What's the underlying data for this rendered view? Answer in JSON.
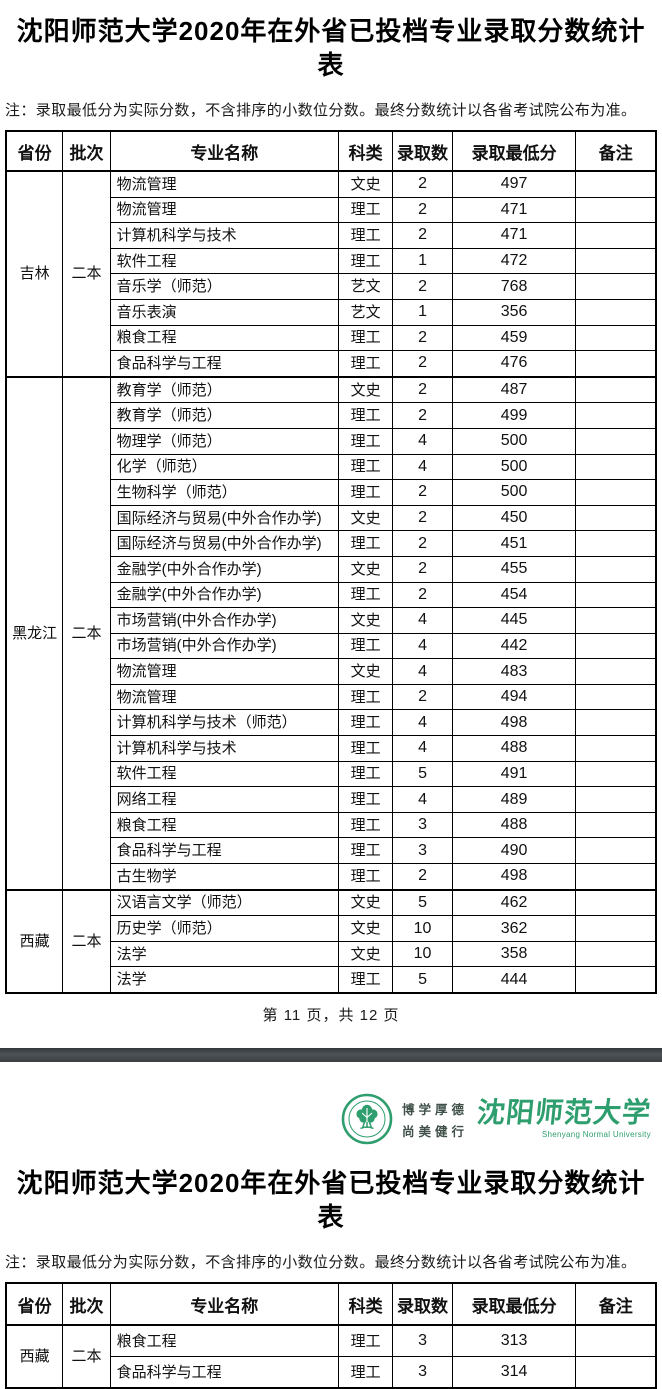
{
  "page1": {
    "title": "沈阳师范大学2020年在外省已投档专业录取分数统计表",
    "note": "注：录取最低分为实际分数，不含排序的小数位分数。最终分数统计以各省考试院公布为准。",
    "footer": "第 11 页，共 12 页",
    "table": {
      "headers": [
        "省份",
        "批次",
        "专业名称",
        "科类",
        "录取数",
        "录取最低分",
        "备注"
      ],
      "groups": [
        {
          "province": "吉林",
          "batch": "二本",
          "rows": [
            [
              "物流管理",
              "文史",
              "2",
              "497",
              ""
            ],
            [
              "物流管理",
              "理工",
              "2",
              "471",
              ""
            ],
            [
              "计算机科学与技术",
              "理工",
              "2",
              "471",
              ""
            ],
            [
              "软件工程",
              "理工",
              "1",
              "472",
              ""
            ],
            [
              "音乐学（师范）",
              "艺文",
              "2",
              "768",
              ""
            ],
            [
              "音乐表演",
              "艺文",
              "1",
              "356",
              ""
            ],
            [
              "粮食工程",
              "理工",
              "2",
              "459",
              ""
            ],
            [
              "食品科学与工程",
              "理工",
              "2",
              "476",
              ""
            ]
          ]
        },
        {
          "province": "黑龙江",
          "batch": "二本",
          "rows": [
            [
              "教育学（师范）",
              "文史",
              "2",
              "487",
              ""
            ],
            [
              "教育学（师范）",
              "理工",
              "2",
              "499",
              ""
            ],
            [
              "物理学（师范）",
              "理工",
              "4",
              "500",
              ""
            ],
            [
              "化学（师范）",
              "理工",
              "4",
              "500",
              ""
            ],
            [
              "生物科学（师范）",
              "理工",
              "2",
              "500",
              ""
            ],
            [
              "国际经济与贸易(中外合作办学)",
              "文史",
              "2",
              "450",
              ""
            ],
            [
              "国际经济与贸易(中外合作办学)",
              "理工",
              "2",
              "451",
              ""
            ],
            [
              "金融学(中外合作办学)",
              "文史",
              "2",
              "455",
              ""
            ],
            [
              "金融学(中外合作办学)",
              "理工",
              "2",
              "454",
              ""
            ],
            [
              "市场营销(中外合作办学)",
              "文史",
              "4",
              "445",
              ""
            ],
            [
              "市场营销(中外合作办学)",
              "理工",
              "4",
              "442",
              ""
            ],
            [
              "物流管理",
              "文史",
              "4",
              "483",
              ""
            ],
            [
              "物流管理",
              "理工",
              "2",
              "494",
              ""
            ],
            [
              "计算机科学与技术（师范）",
              "理工",
              "4",
              "498",
              ""
            ],
            [
              "计算机科学与技术",
              "理工",
              "4",
              "488",
              ""
            ],
            [
              "软件工程",
              "理工",
              "5",
              "491",
              ""
            ],
            [
              "网络工程",
              "理工",
              "4",
              "489",
              ""
            ],
            [
              "粮食工程",
              "理工",
              "3",
              "488",
              ""
            ],
            [
              "食品科学与工程",
              "理工",
              "3",
              "490",
              ""
            ],
            [
              "古生物学",
              "理工",
              "2",
              "498",
              ""
            ]
          ]
        },
        {
          "province": "西藏",
          "batch": "二本",
          "rows": [
            [
              "汉语言文学（师范）",
              "文史",
              "5",
              "462",
              ""
            ],
            [
              "历史学（师范）",
              "文史",
              "10",
              "362",
              ""
            ],
            [
              "法学",
              "文史",
              "10",
              "358",
              ""
            ],
            [
              "法学",
              "理工",
              "5",
              "444",
              ""
            ]
          ]
        }
      ]
    }
  },
  "logo": {
    "emblem_icon": "university-emblem-icon",
    "motto_line1": "博学厚德",
    "motto_line2": "尚美健行",
    "university_cn": "沈阳师范大学",
    "university_en": "Shenyang Normal University",
    "brand_green": "#2f9e6e"
  },
  "page2": {
    "title": "沈阳师范大学2020年在外省已投档专业录取分数统计表",
    "note": "注：录取最低分为实际分数，不含排序的小数位分数。最终分数统计以各省考试院公布为准。",
    "table": {
      "headers": [
        "省份",
        "批次",
        "专业名称",
        "科类",
        "录取数",
        "录取最低分",
        "备注"
      ],
      "groups": [
        {
          "province": "西藏",
          "batch": "二本",
          "rows": [
            [
              "粮食工程",
              "理工",
              "3",
              "313",
              ""
            ],
            [
              "食品科学与工程",
              "理工",
              "3",
              "314",
              ""
            ]
          ]
        }
      ]
    }
  },
  "colors": {
    "separator_bar": "#3f4448",
    "table_border": "#000000",
    "text": "#111111"
  }
}
